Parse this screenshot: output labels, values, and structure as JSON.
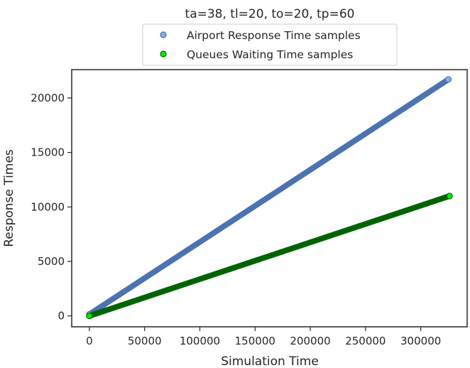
{
  "chart_data": {
    "type": "scatter",
    "title": "ta=38, tl=20, to=20, tp=60",
    "xlabel": "Simulation Time",
    "ylabel": "Response Times",
    "xlim": [
      -16000,
      342000
    ],
    "ylim": [
      -1000,
      22600
    ],
    "xticks": [
      0,
      50000,
      100000,
      150000,
      200000,
      250000,
      300000
    ],
    "yticks": [
      0,
      5000,
      10000,
      15000,
      20000
    ],
    "legend_position": "top-center",
    "series": [
      {
        "name": "Airport Response Time samples",
        "color": "#4c72b0",
        "marker_fill": "#7fb2ea",
        "x": [
          0,
          325000
        ],
        "y": [
          150,
          21700
        ]
      },
      {
        "name": "Queues Waiting Time samples",
        "color": "#006400",
        "marker_fill": "#00ee00",
        "x": [
          0,
          326000
        ],
        "y": [
          0,
          11000
        ]
      }
    ]
  }
}
